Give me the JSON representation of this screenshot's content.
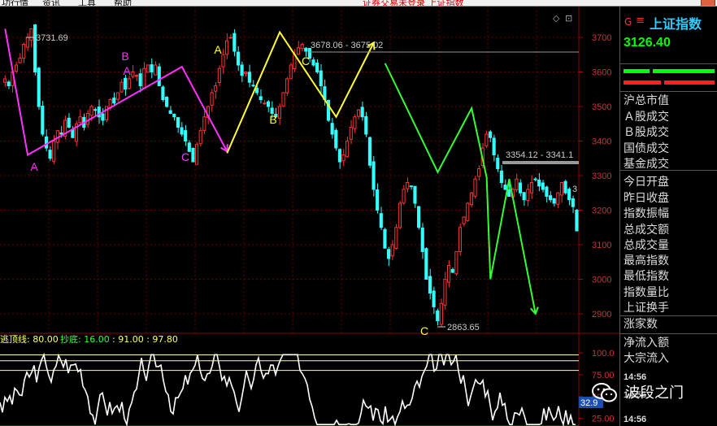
{
  "menubar": {
    "items": [
      "功行情",
      "资讯",
      "工具",
      "帮助"
    ],
    "status": "证券交易未登录  上证指数"
  },
  "indicator": {
    "name": "逃顶线: 80.00",
    "name2": "抄底: 16.00",
    "values": ": 91.00 : 97.80",
    "current": "32.9"
  },
  "side": {
    "g_label": "G",
    "menu_glyph": "≡",
    "index_name": "上证指数",
    "price": "3126.40",
    "labels": [
      "沪总市值",
      "Ａ股成交",
      "Ｂ股成交",
      "国债成交",
      "基金成交",
      "今日开盘",
      "昨日收盘",
      "指数振幅",
      "总成交额",
      "总成交量",
      "最高指数",
      "最低指数",
      "指数量比",
      "上证换手",
      "涨家数",
      "净流入额",
      "大宗流入"
    ],
    "times": [
      "14:56",
      "14:56",
      "14:56"
    ]
  },
  "watermark": "波段之门",
  "colors": {
    "up": "#ff3333",
    "down": "#33ffff",
    "magenta": "#ff33ff",
    "yellow": "#ffff33",
    "green": "#33ff33",
    "grid": "#6a0000"
  },
  "chart_data": {
    "type": "candlestick",
    "y_ticks": [
      "3700",
      "3600",
      "3500",
      "3400",
      "3300",
      "3200",
      "3100",
      "3000",
      "2900"
    ],
    "ylim": [
      2860,
      3740
    ],
    "indicator_ticks": [
      "100.0",
      "75.00",
      "50.00",
      "25.00"
    ],
    "annotations": {
      "high1": "3731.69",
      "range1": "3678.06 - 3675.02",
      "range2": "3354.12 - 3341.1",
      "low1": "2863.65",
      "edge": "3"
    },
    "wave_labels": [
      {
        "text": "A",
        "color": "magenta",
        "value": 3348
      },
      {
        "text": "B",
        "color": "magenta",
        "value": 3648
      },
      {
        "text": "A",
        "color": "magenta",
        "value": 3618
      },
      {
        "text": "C",
        "color": "magenta",
        "value": 3364
      },
      {
        "text": "A",
        "color": "yellow",
        "value": 3704
      },
      {
        "text": "B",
        "color": "yellow",
        "value": 3480
      },
      {
        "text": "C",
        "color": "yellow",
        "value": 3663
      },
      {
        "text": "C",
        "color": "yellow",
        "value": 2858
      }
    ],
    "wave_lines": [
      {
        "color": "magenta",
        "points": [
          [
            0,
            3725
          ],
          [
            6,
            3360
          ],
          [
            47,
            3615
          ],
          [
            59,
            3370
          ]
        ]
      },
      {
        "color": "yellow",
        "points": [
          [
            59,
            3365
          ],
          [
            73,
            3715
          ],
          [
            88,
            3470
          ],
          [
            98,
            3685
          ]
        ]
      },
      {
        "color": "green",
        "points": [
          [
            101,
            3625
          ],
          [
            115,
            3310
          ],
          [
            124,
            3495
          ],
          [
            128,
            3295
          ],
          [
            129,
            3000
          ],
          [
            134,
            3290
          ],
          [
            141,
            2900
          ]
        ]
      }
    ],
    "candles_note": "approximate daily closes",
    "closes": [
      3580,
      3560,
      3600,
      3620,
      3640,
      3680,
      3700,
      3725,
      3600,
      3500,
      3420,
      3380,
      3350,
      3400,
      3430,
      3420,
      3460,
      3440,
      3410,
      3450,
      3470,
      3440,
      3480,
      3500,
      3490,
      3470,
      3460,
      3500,
      3520,
      3510,
      3540,
      3570,
      3550,
      3580,
      3600,
      3590,
      3560,
      3610,
      3620,
      3600,
      3620,
      3560,
      3520,
      3500,
      3480,
      3470,
      3440,
      3420,
      3400,
      3370,
      3340,
      3390,
      3430,
      3470,
      3500,
      3540,
      3560,
      3610,
      3650,
      3690,
      3700,
      3660,
      3620,
      3590,
      3600,
      3570,
      3560,
      3540,
      3520,
      3510,
      3500,
      3480,
      3470,
      3500,
      3540,
      3580,
      3620,
      3650,
      3670,
      3680,
      3660,
      3640,
      3620,
      3600,
      3560,
      3520,
      3460,
      3420,
      3380,
      3340,
      3360,
      3400,
      3440,
      3470,
      3490,
      3470,
      3420,
      3330,
      3260,
      3200,
      3150,
      3090,
      3060,
      3100,
      3150,
      3220,
      3260,
      3280,
      3270,
      3220,
      3150,
      3080,
      3000,
      2960,
      2920,
      2880,
      2930,
      3000,
      3040,
      3020,
      3080,
      3150,
      3180,
      3220,
      3250,
      3290,
      3320,
      3380,
      3420,
      3410,
      3360,
      3320,
      3280,
      3260,
      3240,
      3260,
      3290,
      3250,
      3230,
      3260,
      3280,
      3290,
      3270,
      3260,
      3240,
      3230,
      3220,
      3250,
      3280,
      3250,
      3230,
      3210,
      3140
    ]
  }
}
